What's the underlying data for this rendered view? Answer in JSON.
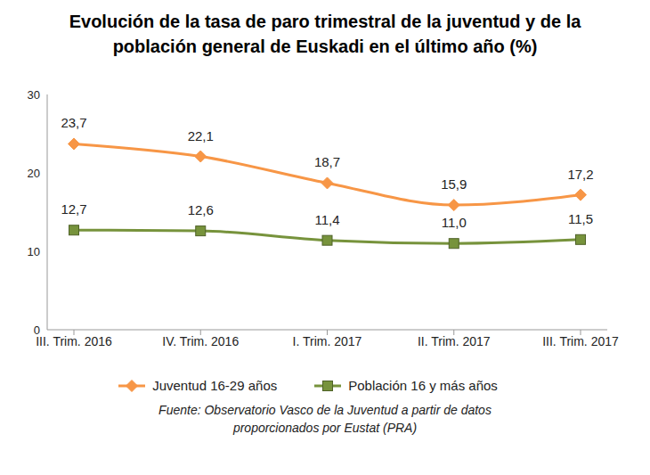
{
  "chart_data": {
    "type": "line",
    "title": "Evolución de la tasa de paro trimestral de la juventud y de la población general de Euskadi en el último año (%)",
    "categories": [
      "III. Trim. 2016",
      "IV. Trim. 2016",
      "I. Trim. 2017",
      "II. Trim. 2017",
      "III. Trim. 2017"
    ],
    "series": [
      {
        "name": "Juventud 16-29 años",
        "color": "#f79646",
        "marker": "diamond",
        "line_style": "solid",
        "values": [
          23.7,
          22.1,
          18.7,
          15.9,
          17.2
        ],
        "value_labels": [
          "23,7",
          "22,1",
          "18,7",
          "15,9",
          "17,2"
        ]
      },
      {
        "name": "Población 16 y más años",
        "color": "#77933c",
        "marker": "square",
        "line_style": "solid",
        "values": [
          12.7,
          12.6,
          11.4,
          11.0,
          11.5
        ],
        "value_labels": [
          "12,7",
          "12,6",
          "11,4",
          "11,0",
          "11,5"
        ]
      }
    ],
    "ylim": [
      0,
      30
    ],
    "yticks": [
      0,
      10,
      20,
      30
    ],
    "grid": false,
    "legend": "bottom",
    "data_labels": true,
    "annotations": [
      "Fuente: Observatorio Vasco de la Juventud a partir de datos proporcionados por Eustat (PRA)"
    ]
  }
}
